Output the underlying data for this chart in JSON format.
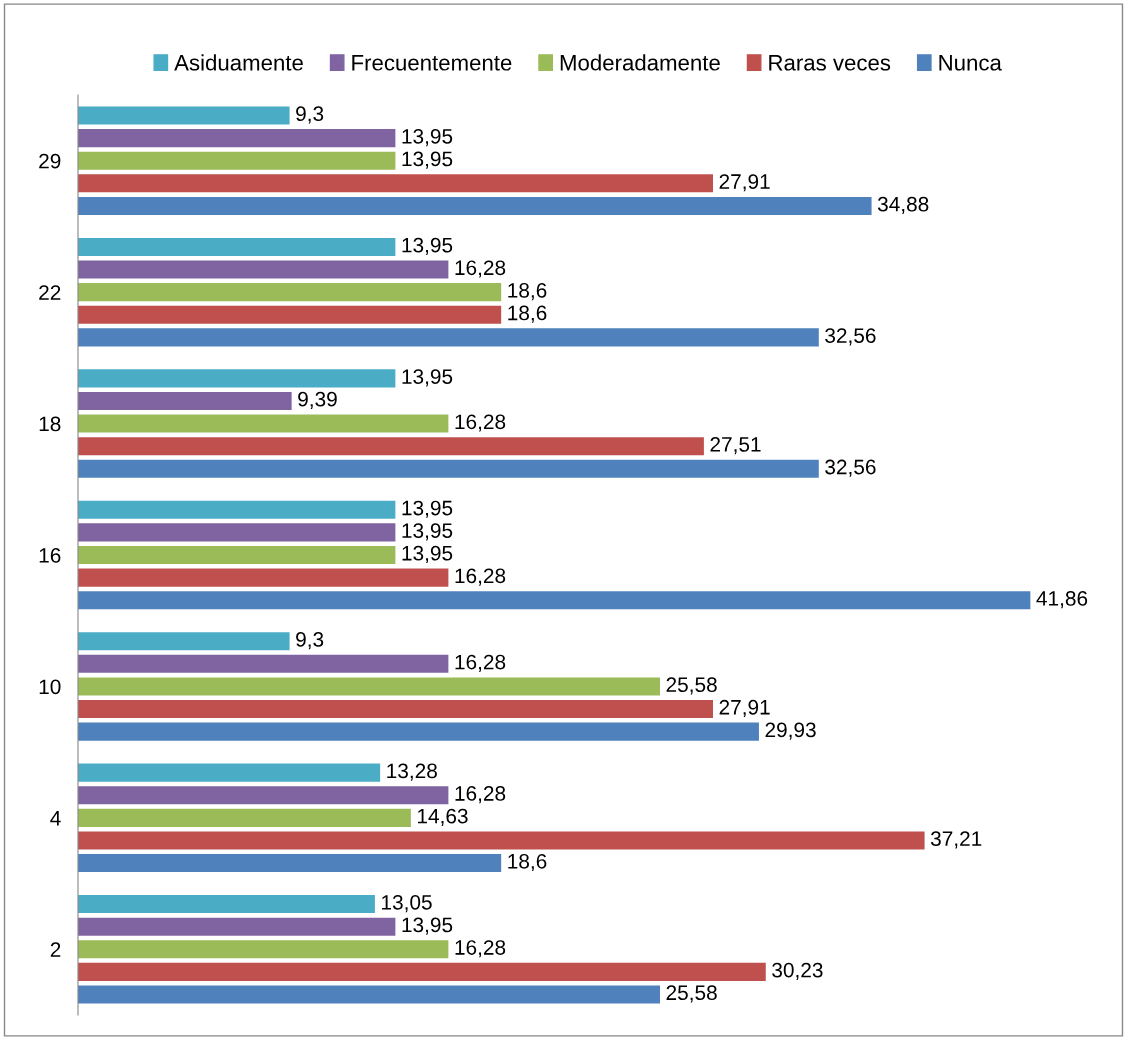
{
  "chart_data": {
    "type": "bar",
    "orientation": "horizontal",
    "categories": [
      "29",
      "22",
      "18",
      "16",
      "10",
      "4",
      "2"
    ],
    "legend": "top",
    "grid": false,
    "tick_labels": "y",
    "series": [
      {
        "name": "Asiduamente",
        "color": "#4bacc6",
        "values": [
          9.3,
          13.95,
          13.95,
          13.95,
          9.3,
          13.28,
          13.05
        ],
        "value_labels": [
          "9,3",
          "13,95",
          "13,95",
          "13,95",
          "9,3",
          "13,28",
          "13,05"
        ]
      },
      {
        "name": "Frecuentemente",
        "color": "#8064a2",
        "values": [
          13.95,
          16.28,
          9.39,
          13.95,
          16.28,
          16.28,
          13.95
        ],
        "value_labels": [
          "13,95",
          "16,28",
          "9,39",
          "13,95",
          "16,28",
          "16,28",
          "13,95"
        ]
      },
      {
        "name": "Moderadamente",
        "color": "#9bbb59",
        "values": [
          13.95,
          18.6,
          16.28,
          13.95,
          25.58,
          14.63,
          16.28
        ],
        "value_labels": [
          "13,95",
          "18,6",
          "16,28",
          "13,95",
          "25,58",
          "14,63",
          "16,28"
        ]
      },
      {
        "name": "Raras veces",
        "color": "#c0504d",
        "values": [
          27.91,
          18.6,
          27.51,
          16.28,
          27.91,
          37.21,
          30.23
        ],
        "value_labels": [
          "27,91",
          "18,6",
          "27,51",
          "16,28",
          "27,91",
          "37,21",
          "30,23"
        ]
      },
      {
        "name": "Nunca",
        "color": "#4f81bd",
        "values": [
          34.88,
          32.56,
          32.56,
          41.86,
          29.93,
          18.6,
          25.58
        ],
        "value_labels": [
          "34,88",
          "32,56",
          "32,56",
          "41,86",
          "29,93",
          "18,6",
          "25,58"
        ]
      }
    ]
  }
}
